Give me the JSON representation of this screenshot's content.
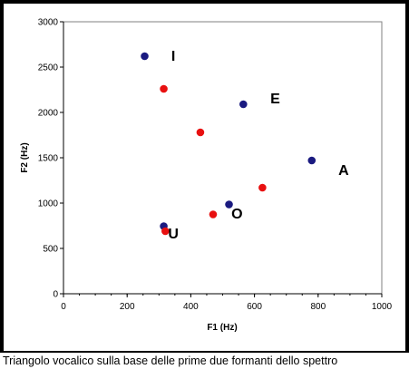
{
  "caption": "Triangolo vocalico sulla base delle prime due formanti dello spettro",
  "chart_data": {
    "type": "scatter",
    "xlabel": "F1 (Hz)",
    "ylabel": "F2 (Hz)",
    "xlim": [
      0,
      1000
    ],
    "ylim": [
      0,
      3000
    ],
    "x_ticks": [
      "0",
      "200",
      "400",
      "600",
      "800",
      "1000"
    ],
    "y_ticks": [
      "0",
      "500",
      "1000",
      "1500",
      "2000",
      "2500",
      "3000"
    ],
    "grid": false,
    "series": [
      {
        "color": "#1a1a80",
        "points": [
          {
            "x": 255,
            "y": 2620
          },
          {
            "x": 565,
            "y": 2090
          },
          {
            "x": 780,
            "y": 1470
          },
          {
            "x": 520,
            "y": 985
          },
          {
            "x": 315,
            "y": 745
          }
        ]
      },
      {
        "color": "#e81010",
        "points": [
          {
            "x": 315,
            "y": 2260
          },
          {
            "x": 430,
            "y": 1780
          },
          {
            "x": 625,
            "y": 1170
          },
          {
            "x": 470,
            "y": 875
          },
          {
            "x": 320,
            "y": 690
          }
        ]
      }
    ],
    "annotations": [
      {
        "text": "I",
        "x": 345,
        "y": 2570
      },
      {
        "text": "E",
        "x": 665,
        "y": 2100
      },
      {
        "text": "A",
        "x": 880,
        "y": 1310
      },
      {
        "text": "O",
        "x": 545,
        "y": 830
      },
      {
        "text": "U",
        "x": 345,
        "y": 610
      }
    ]
  }
}
